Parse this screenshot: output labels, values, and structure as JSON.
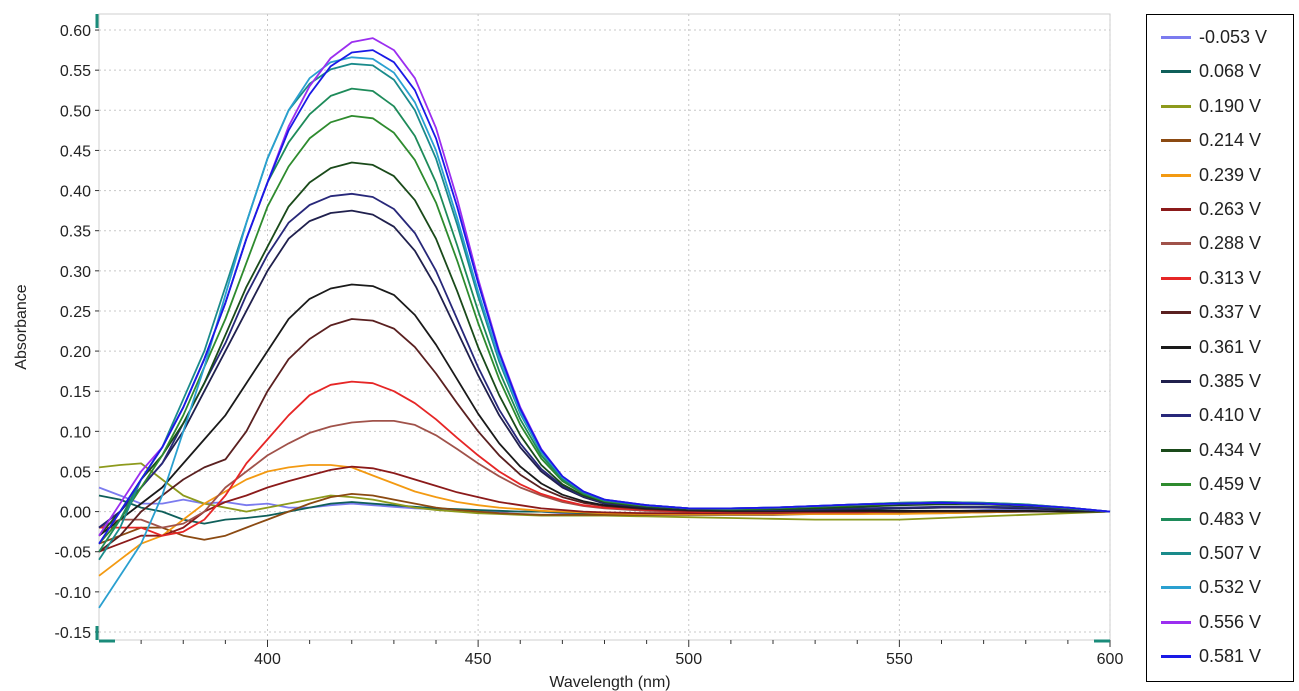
{
  "chart_data": {
    "type": "line",
    "title": "",
    "xlabel": "Wavelength (nm)",
    "ylabel": "Absorbance",
    "xlim": [
      360,
      600
    ],
    "ylim": [
      -0.16,
      0.62
    ],
    "xticks": [
      400,
      450,
      500,
      550,
      600
    ],
    "yticks": [
      -0.15,
      -0.1,
      -0.05,
      0.0,
      0.05,
      0.1,
      0.15,
      0.2,
      0.25,
      0.3,
      0.35,
      0.4,
      0.45,
      0.5,
      0.55,
      0.6
    ],
    "ytick_labels": [
      "-0.15",
      "-0.10",
      "-0.05",
      "0.00",
      "0.05",
      "0.10",
      "0.15",
      "0.20",
      "0.25",
      "0.30",
      "0.35",
      "0.40",
      "0.45",
      "0.50",
      "0.55",
      "0.60"
    ],
    "grid": true,
    "legend_position": "right",
    "x": [
      360,
      365,
      370,
      375,
      380,
      385,
      390,
      395,
      400,
      405,
      410,
      415,
      420,
      425,
      430,
      435,
      440,
      445,
      450,
      455,
      460,
      465,
      470,
      475,
      480,
      490,
      500,
      510,
      520,
      530,
      540,
      550,
      560,
      570,
      580,
      590,
      600
    ],
    "series": [
      {
        "name": "-0.053 V",
        "color": "#7b7bef",
        "values": [
          0.03,
          0.02,
          0.01,
          0.01,
          0.015,
          0.01,
          0.012,
          0.008,
          0.01,
          0.005,
          0.005,
          0.008,
          0.01,
          0.008,
          0.006,
          0.004,
          0.003,
          0.002,
          0.001,
          0.0,
          0.0,
          0.0,
          -0.002,
          -0.002,
          -0.002,
          -0.003,
          -0.003,
          -0.003,
          -0.003,
          -0.003,
          -0.002,
          -0.002,
          0.0,
          0.002,
          0.003,
          0.002,
          0.0
        ]
      },
      {
        "name": "0.068 V",
        "color": "#0f5f5a",
        "values": [
          0.02,
          0.015,
          0.005,
          0.0,
          -0.01,
          -0.015,
          -0.01,
          -0.008,
          -0.005,
          0.0,
          0.005,
          0.01,
          0.012,
          0.01,
          0.008,
          0.006,
          0.004,
          0.003,
          0.002,
          0.001,
          0.0,
          0.0,
          -0.001,
          -0.002,
          -0.002,
          -0.003,
          -0.003,
          -0.002,
          -0.001,
          0.0,
          0.002,
          0.004,
          0.005,
          0.006,
          0.005,
          0.003,
          0.0
        ]
      },
      {
        "name": "0.190 V",
        "color": "#8d9a1c",
        "values": [
          0.055,
          0.058,
          0.06,
          0.04,
          0.02,
          0.01,
          0.005,
          0.0,
          0.005,
          0.01,
          0.015,
          0.02,
          0.018,
          0.015,
          0.01,
          0.005,
          0.002,
          0.0,
          -0.002,
          -0.003,
          -0.004,
          -0.005,
          -0.005,
          -0.005,
          -0.005,
          -0.006,
          -0.007,
          -0.008,
          -0.009,
          -0.01,
          -0.01,
          -0.01,
          -0.008,
          -0.006,
          -0.004,
          -0.002,
          0.0
        ]
      },
      {
        "name": "0.214 V",
        "color": "#8b4a12",
        "values": [
          -0.04,
          -0.03,
          -0.02,
          -0.02,
          -0.03,
          -0.035,
          -0.03,
          -0.02,
          -0.01,
          0.0,
          0.01,
          0.018,
          0.022,
          0.02,
          0.015,
          0.01,
          0.005,
          0.002,
          0.0,
          -0.002,
          -0.003,
          -0.004,
          -0.004,
          -0.004,
          -0.004,
          -0.004,
          -0.004,
          -0.004,
          -0.004,
          -0.003,
          -0.003,
          -0.002,
          -0.002,
          -0.001,
          0.0,
          0.0,
          0.0
        ]
      },
      {
        "name": "0.239 V",
        "color": "#f39a12",
        "values": [
          -0.08,
          -0.06,
          -0.04,
          -0.03,
          -0.01,
          0.01,
          0.025,
          0.04,
          0.05,
          0.055,
          0.058,
          0.058,
          0.055,
          0.045,
          0.035,
          0.025,
          0.018,
          0.012,
          0.008,
          0.005,
          0.003,
          0.001,
          0.0,
          -0.001,
          -0.002,
          -0.003,
          -0.003,
          -0.003,
          -0.003,
          -0.003,
          -0.003,
          -0.003,
          -0.002,
          -0.001,
          0.0,
          0.0,
          0.0
        ]
      },
      {
        "name": "0.263 V",
        "color": "#8b1a1a",
        "values": [
          -0.05,
          -0.04,
          -0.03,
          -0.03,
          -0.02,
          0.0,
          0.012,
          0.02,
          0.03,
          0.038,
          0.045,
          0.052,
          0.056,
          0.054,
          0.048,
          0.04,
          0.032,
          0.024,
          0.018,
          0.012,
          0.008,
          0.004,
          0.002,
          0.0,
          -0.001,
          -0.002,
          -0.002,
          -0.002,
          -0.002,
          -0.001,
          -0.001,
          0.0,
          0.0,
          0.0,
          0.0,
          0.0,
          0.0
        ]
      },
      {
        "name": "0.288 V",
        "color": "#a0524a",
        "values": [
          -0.02,
          -0.01,
          -0.01,
          -0.02,
          -0.015,
          0.0,
          0.03,
          0.05,
          0.07,
          0.085,
          0.098,
          0.106,
          0.111,
          0.113,
          0.113,
          0.108,
          0.095,
          0.078,
          0.06,
          0.044,
          0.03,
          0.02,
          0.012,
          0.007,
          0.004,
          0.001,
          0.0,
          -0.001,
          -0.001,
          -0.001,
          -0.001,
          0.0,
          0.0,
          0.0,
          0.0,
          0.0,
          0.0
        ]
      },
      {
        "name": "0.313 V",
        "color": "#e62626",
        "values": [
          -0.02,
          -0.02,
          -0.02,
          -0.03,
          -0.025,
          -0.01,
          0.02,
          0.06,
          0.09,
          0.12,
          0.145,
          0.158,
          0.162,
          0.16,
          0.15,
          0.135,
          0.115,
          0.092,
          0.07,
          0.05,
          0.034,
          0.022,
          0.014,
          0.008,
          0.005,
          0.002,
          0.0,
          -0.001,
          -0.001,
          -0.001,
          -0.001,
          0.0,
          0.0,
          0.0,
          0.0,
          0.0,
          0.0
        ]
      },
      {
        "name": "0.337 V",
        "color": "#5a2020",
        "values": [
          -0.05,
          -0.03,
          0.0,
          0.02,
          0.04,
          0.055,
          0.065,
          0.1,
          0.15,
          0.19,
          0.215,
          0.232,
          0.24,
          0.238,
          0.228,
          0.205,
          0.172,
          0.135,
          0.1,
          0.07,
          0.046,
          0.029,
          0.018,
          0.011,
          0.007,
          0.003,
          0.001,
          0.0,
          0.0,
          0.0,
          0.0,
          0.0,
          0.0,
          0.0,
          0.0,
          0.0,
          0.0
        ]
      },
      {
        "name": "0.361 V",
        "color": "#1a1a1a",
        "values": [
          -0.03,
          -0.01,
          0.01,
          0.03,
          0.06,
          0.09,
          0.12,
          0.16,
          0.2,
          0.24,
          0.265,
          0.278,
          0.283,
          0.281,
          0.27,
          0.245,
          0.208,
          0.165,
          0.122,
          0.085,
          0.056,
          0.035,
          0.021,
          0.013,
          0.008,
          0.004,
          0.002,
          0.001,
          0.001,
          0.001,
          0.001,
          0.001,
          0.001,
          0.001,
          0.001,
          0.0,
          0.0
        ]
      },
      {
        "name": "0.385 V",
        "color": "#20204d",
        "values": [
          -0.02,
          0.0,
          0.03,
          0.06,
          0.1,
          0.15,
          0.2,
          0.25,
          0.3,
          0.34,
          0.362,
          0.372,
          0.375,
          0.37,
          0.355,
          0.325,
          0.28,
          0.225,
          0.17,
          0.12,
          0.08,
          0.05,
          0.03,
          0.018,
          0.01,
          0.005,
          0.003,
          0.002,
          0.002,
          0.002,
          0.003,
          0.004,
          0.005,
          0.005,
          0.004,
          0.002,
          0.0
        ]
      },
      {
        "name": "0.410 V",
        "color": "#28287a",
        "values": [
          -0.02,
          0.0,
          0.03,
          0.06,
          0.11,
          0.16,
          0.21,
          0.27,
          0.32,
          0.36,
          0.382,
          0.393,
          0.396,
          0.392,
          0.377,
          0.347,
          0.3,
          0.24,
          0.18,
          0.127,
          0.085,
          0.053,
          0.032,
          0.019,
          0.011,
          0.006,
          0.003,
          0.002,
          0.002,
          0.003,
          0.004,
          0.005,
          0.006,
          0.006,
          0.005,
          0.003,
          0.0
        ]
      },
      {
        "name": "0.434 V",
        "color": "#1a4a1a",
        "values": [
          -0.03,
          0.0,
          0.04,
          0.07,
          0.11,
          0.16,
          0.22,
          0.28,
          0.33,
          0.38,
          0.41,
          0.428,
          0.435,
          0.432,
          0.418,
          0.388,
          0.34,
          0.275,
          0.205,
          0.145,
          0.095,
          0.058,
          0.034,
          0.02,
          0.012,
          0.006,
          0.003,
          0.002,
          0.003,
          0.004,
          0.006,
          0.008,
          0.009,
          0.009,
          0.007,
          0.004,
          0.0
        ]
      },
      {
        "name": "0.459 V",
        "color": "#2e8b2e",
        "values": [
          -0.04,
          -0.01,
          0.03,
          0.07,
          0.12,
          0.18,
          0.24,
          0.31,
          0.38,
          0.43,
          0.465,
          0.485,
          0.493,
          0.49,
          0.472,
          0.438,
          0.385,
          0.313,
          0.235,
          0.165,
          0.108,
          0.066,
          0.038,
          0.022,
          0.013,
          0.007,
          0.004,
          0.003,
          0.004,
          0.006,
          0.008,
          0.01,
          0.011,
          0.01,
          0.008,
          0.004,
          0.0
        ]
      },
      {
        "name": "0.483 V",
        "color": "#1e8b5a",
        "values": [
          -0.05,
          -0.01,
          0.04,
          0.08,
          0.13,
          0.19,
          0.26,
          0.34,
          0.41,
          0.46,
          0.495,
          0.518,
          0.527,
          0.524,
          0.505,
          0.468,
          0.41,
          0.332,
          0.25,
          0.175,
          0.115,
          0.07,
          0.04,
          0.023,
          0.014,
          0.008,
          0.004,
          0.004,
          0.005,
          0.007,
          0.009,
          0.011,
          0.012,
          0.011,
          0.009,
          0.005,
          0.0
        ]
      },
      {
        "name": "0.507 V",
        "color": "#1a8b8b",
        "values": [
          -0.06,
          -0.02,
          0.04,
          0.08,
          0.14,
          0.2,
          0.28,
          0.36,
          0.44,
          0.5,
          0.533,
          0.551,
          0.558,
          0.556,
          0.538,
          0.5,
          0.44,
          0.358,
          0.268,
          0.187,
          0.122,
          0.074,
          0.042,
          0.024,
          0.014,
          0.008,
          0.004,
          0.004,
          0.005,
          0.007,
          0.009,
          0.011,
          0.012,
          0.011,
          0.009,
          0.005,
          0.0
        ]
      },
      {
        "name": "0.532 V",
        "color": "#2aa0d0",
        "values": [
          -0.12,
          -0.08,
          -0.04,
          0.02,
          0.1,
          0.18,
          0.27,
          0.36,
          0.44,
          0.5,
          0.54,
          0.56,
          0.566,
          0.564,
          0.547,
          0.51,
          0.45,
          0.366,
          0.274,
          0.191,
          0.124,
          0.075,
          0.043,
          0.025,
          0.015,
          0.008,
          0.004,
          0.004,
          0.005,
          0.007,
          0.009,
          0.01,
          0.011,
          0.01,
          0.008,
          0.005,
          0.0
        ]
      },
      {
        "name": "0.556 V",
        "color": "#9b2ef0",
        "values": [
          -0.03,
          0.01,
          0.05,
          0.08,
          0.13,
          0.19,
          0.26,
          0.34,
          0.41,
          0.48,
          0.53,
          0.565,
          0.585,
          0.59,
          0.575,
          0.54,
          0.478,
          0.39,
          0.29,
          0.2,
          0.13,
          0.078,
          0.044,
          0.025,
          0.015,
          0.008,
          0.004,
          0.004,
          0.005,
          0.007,
          0.009,
          0.01,
          0.011,
          0.01,
          0.008,
          0.005,
          0.0
        ]
      },
      {
        "name": "0.581 V",
        "color": "#1a1ae6",
        "values": [
          -0.04,
          0.0,
          0.04,
          0.08,
          0.13,
          0.19,
          0.26,
          0.34,
          0.41,
          0.475,
          0.52,
          0.555,
          0.572,
          0.575,
          0.56,
          0.525,
          0.465,
          0.38,
          0.285,
          0.198,
          0.128,
          0.077,
          0.044,
          0.025,
          0.015,
          0.008,
          0.004,
          0.004,
          0.005,
          0.007,
          0.009,
          0.01,
          0.011,
          0.01,
          0.008,
          0.005,
          0.0
        ]
      }
    ]
  }
}
